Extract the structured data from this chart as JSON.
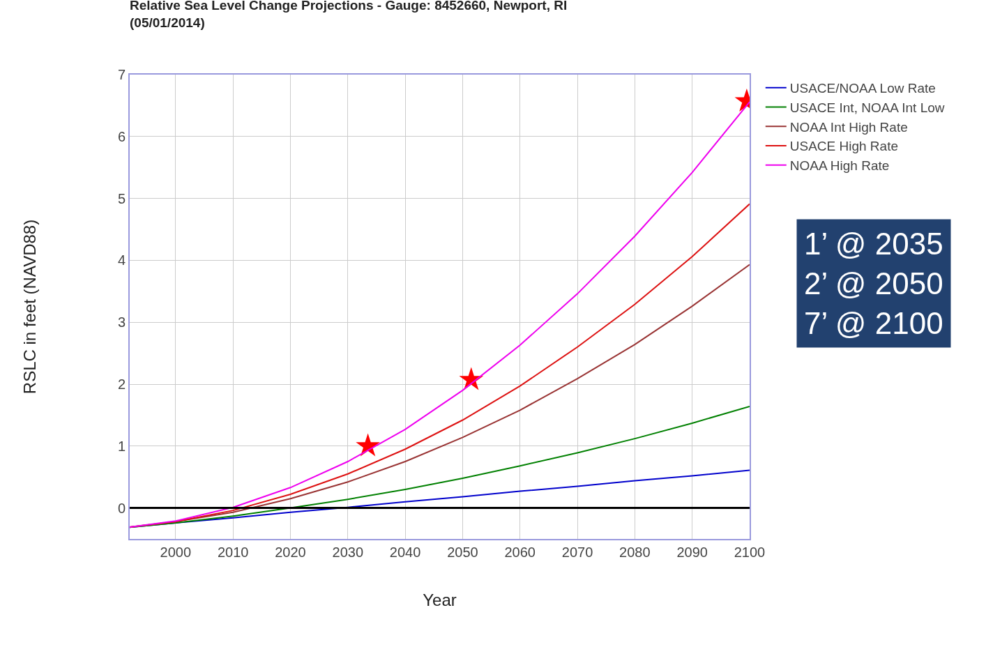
{
  "chart_data": {
    "type": "line",
    "title": "Relative Sea Level Change Projections - Gauge: 8452660, Newport, RI\n(05/01/2014)",
    "xlabel": "Year",
    "ylabel": "RSLC in feet (NAVD88)",
    "x": [
      1992,
      2000,
      2010,
      2020,
      2030,
      2040,
      2050,
      2060,
      2070,
      2080,
      2090,
      2100
    ],
    "series": [
      {
        "name": "USACE/NOAA Low Rate",
        "color": "#0000cc",
        "values": [
          -0.31,
          -0.24,
          -0.16,
          -0.07,
          0.01,
          0.1,
          0.18,
          0.27,
          0.35,
          0.44,
          0.52,
          0.61
        ]
      },
      {
        "name": "USACE Int, NOAA Int Low",
        "color": "#008000",
        "values": [
          -0.31,
          -0.24,
          -0.13,
          0.0,
          0.14,
          0.3,
          0.48,
          0.68,
          0.89,
          1.12,
          1.37,
          1.64
        ]
      },
      {
        "name": "NOAA Int High Rate",
        "color": "#993333",
        "values": [
          -0.31,
          -0.22,
          -0.07,
          0.15,
          0.42,
          0.75,
          1.14,
          1.58,
          2.09,
          2.64,
          3.26,
          3.93
        ]
      },
      {
        "name": "USACE High Rate",
        "color": "#dd1111",
        "values": [
          -0.31,
          -0.22,
          -0.04,
          0.22,
          0.55,
          0.95,
          1.42,
          1.97,
          2.6,
          3.29,
          4.06,
          4.91
        ]
      },
      {
        "name": "NOAA High Rate",
        "color": "#ee00ee",
        "values": [
          -0.31,
          -0.21,
          0.01,
          0.33,
          0.75,
          1.27,
          1.9,
          2.63,
          3.46,
          4.39,
          5.42,
          6.56
        ]
      },
      {
        "type": "scatter",
        "marker": "star",
        "color": "#ff0000",
        "x": [
          2033.5,
          2051.5,
          2099.5
        ],
        "values": [
          1.0,
          2.07,
          6.57
        ]
      }
    ],
    "xlim": [
      1992,
      2100
    ],
    "xticks": [
      2000,
      2010,
      2020,
      2030,
      2040,
      2050,
      2060,
      2070,
      2080,
      2090,
      2100
    ],
    "ylim": [
      -0.5,
      7
    ],
    "yticks": [
      0,
      1,
      2,
      3,
      4,
      5,
      6,
      7
    ],
    "ref_lines": [
      {
        "axis": "y",
        "value": 0,
        "color": "#000000"
      }
    ],
    "grid": true,
    "legend": "top right",
    "line_style": "solid",
    "marker": "none",
    "annotations": [
      "1’ @ 2035\n2’ @ 2050\n7’ @ 2100"
    ]
  }
}
